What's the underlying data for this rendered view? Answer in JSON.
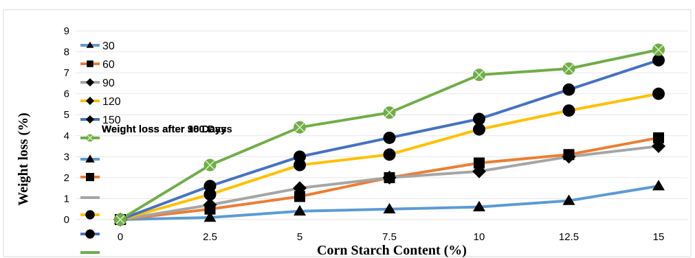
{
  "chart_data": {
    "type": "line",
    "xlabel": "Corn Starch  Content (%)",
    "ylabel": "Weight loss (%)",
    "ylim": [
      0,
      9
    ],
    "y_ticks": [
      "0",
      "1",
      "2",
      "3",
      "4",
      "5",
      "6",
      "7",
      "8",
      "9"
    ],
    "x": [
      "0",
      "2.5",
      "5",
      "7.5",
      "10",
      "12.5",
      "15"
    ],
    "legend_position": "left",
    "overlay_labels": [
      "Weight loss after 180 Days",
      "Weight loss after 90 Days",
      "Weight loss after 30 Days"
    ],
    "series": [
      {
        "name": "30",
        "color": "#5b9bd5",
        "marker": "triangle",
        "values": [
          0,
          0.1,
          0.4,
          0.5,
          0.6,
          0.9,
          1.6
        ]
      },
      {
        "name": "60",
        "color": "#ed7d31",
        "marker": "square",
        "values": [
          0,
          0.5,
          1.1,
          2.0,
          2.7,
          3.1,
          3.9
        ]
      },
      {
        "name": "90",
        "color": "#a5a5a5",
        "marker": "diamond",
        "values": [
          0,
          0.7,
          1.5,
          2.0,
          2.3,
          3.0,
          3.5
        ]
      },
      {
        "name": "120",
        "color": "#ffc000",
        "marker": "circle",
        "values": [
          0,
          1.2,
          2.6,
          3.1,
          4.3,
          5.2,
          6.0
        ]
      },
      {
        "name": "150",
        "color": "#4472c4",
        "marker": "circle",
        "values": [
          0,
          1.6,
          3.0,
          3.9,
          4.8,
          6.2,
          7.6
        ]
      },
      {
        "name": "",
        "color": "#70ad47",
        "marker": "x",
        "values": [
          0,
          2.6,
          4.4,
          5.1,
          6.9,
          7.2,
          8.1
        ]
      }
    ]
  }
}
